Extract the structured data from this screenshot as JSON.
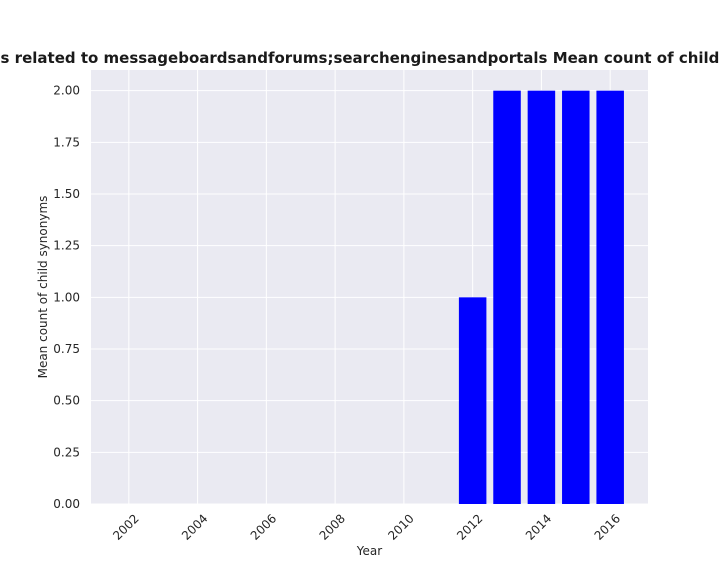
{
  "chart_data": {
    "type": "bar",
    "title": "Count of child synonyms related to messageboardsandforums;searchenginesandportals Mean count of child synonyms in each year",
    "xlabel": "Year",
    "ylabel": "Mean count of child synonyms",
    "x": [
      2012,
      2013,
      2014,
      2015,
      2016
    ],
    "values": [
      1.0,
      2.0,
      2.0,
      2.0,
      2.0
    ],
    "xlim": [
      2000.9,
      2017.1
    ],
    "ylim": [
      0,
      2.1
    ],
    "xticks": [
      2002,
      2004,
      2006,
      2008,
      2010,
      2012,
      2014,
      2016
    ],
    "yticks": [
      0.0,
      0.25,
      0.5,
      0.75,
      1.0,
      1.25,
      1.5,
      1.75,
      2.0
    ],
    "bar_color": "#0000ff",
    "background_color": "#eaeaf2",
    "grid_color": "#ffffff",
    "grid": true
  }
}
